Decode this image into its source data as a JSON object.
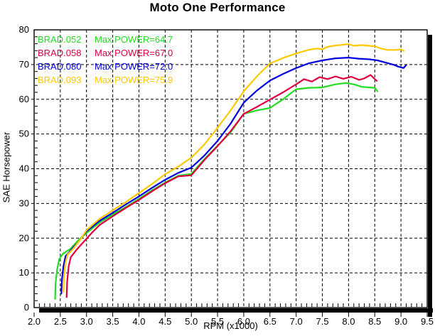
{
  "title": "Moto One Performance",
  "legend": [
    {
      "name": "BRAD.052",
      "label": "Max POWER=64.7",
      "color": "#22dd22"
    },
    {
      "name": "BRAD.058",
      "label": "Max POWER=67.0",
      "color": "#e00040"
    },
    {
      "name": "BRAD.080",
      "label": "Max POWER=72.0",
      "color": "#0000e0"
    },
    {
      "name": "BRAD.093",
      "label": "Max POWER=75.9",
      "color": "#ffc800"
    }
  ],
  "chart_data": {
    "type": "line",
    "title": "Moto One Performance",
    "xlabel": "RPM (x1000)",
    "ylabel": "SAE Horsepower",
    "xlim": [
      2.0,
      9.5
    ],
    "ylim": [
      0,
      80
    ],
    "x_ticks": [
      2.0,
      2.5,
      3.0,
      3.5,
      4.0,
      4.5,
      5.0,
      5.5,
      6.0,
      6.5,
      7.0,
      7.5,
      8.0,
      8.5,
      9.0,
      9.5
    ],
    "x_tick_labels": [
      "2.0",
      "2.5",
      "3.0",
      "3.5",
      "4.0",
      "4.5",
      "5.0",
      "5.5",
      "6.0",
      "6.5",
      "7.0",
      "7.5",
      "8.0",
      "8.5",
      "9.0",
      "9.5"
    ],
    "y_ticks": [
      0,
      10,
      20,
      30,
      40,
      50,
      60,
      70,
      80
    ],
    "y_tick_labels": [
      "0",
      "10",
      "20",
      "30",
      "40",
      "50",
      "60",
      "70",
      "80"
    ],
    "x_minor_step": 0.1,
    "y_minor_step": 2,
    "grid": "dashed",
    "grid_color": "#000000",
    "legend_position": "top-left",
    "series": [
      {
        "name": "BRAD.052",
        "max_power": 64.7,
        "color": "#22dd22",
        "points": [
          [
            2.4,
            2.5
          ],
          [
            2.41,
            7
          ],
          [
            2.44,
            11
          ],
          [
            2.48,
            14
          ],
          [
            2.55,
            15.5
          ],
          [
            2.7,
            17
          ],
          [
            2.85,
            19.5
          ],
          [
            3.0,
            21.5
          ],
          [
            3.25,
            24.5
          ],
          [
            3.5,
            26.8
          ],
          [
            3.75,
            29.0
          ],
          [
            4.0,
            31.3
          ],
          [
            4.25,
            33.8
          ],
          [
            4.5,
            36.0
          ],
          [
            4.75,
            38.0
          ],
          [
            5.0,
            38.5
          ],
          [
            5.25,
            42.8
          ],
          [
            5.5,
            46.6
          ],
          [
            5.75,
            50.5
          ],
          [
            6.0,
            55.8
          ],
          [
            6.25,
            56.8
          ],
          [
            6.5,
            57.5
          ],
          [
            6.75,
            60.0
          ],
          [
            7.0,
            62.9
          ],
          [
            7.25,
            63.3
          ],
          [
            7.5,
            63.4
          ],
          [
            7.75,
            64.3
          ],
          [
            7.95,
            64.7
          ],
          [
            8.1,
            64.3
          ],
          [
            8.25,
            63.6
          ],
          [
            8.4,
            63.4
          ],
          [
            8.5,
            63.3
          ],
          [
            8.55,
            62.3
          ]
        ]
      },
      {
        "name": "BRAD.058",
        "max_power": 67.0,
        "color": "#e00040",
        "points": [
          [
            2.62,
            3
          ],
          [
            2.63,
            7.5
          ],
          [
            2.66,
            12
          ],
          [
            2.7,
            14.5
          ],
          [
            2.8,
            16.5
          ],
          [
            2.95,
            19.0
          ],
          [
            3.1,
            21.5
          ],
          [
            3.25,
            23.8
          ],
          [
            3.5,
            26.3
          ],
          [
            3.75,
            28.7
          ],
          [
            4.0,
            31.0
          ],
          [
            4.25,
            33.5
          ],
          [
            4.5,
            35.8
          ],
          [
            4.75,
            37.8
          ],
          [
            5.0,
            38.1
          ],
          [
            5.25,
            42.5
          ],
          [
            5.5,
            46.5
          ],
          [
            5.75,
            50.8
          ],
          [
            6.0,
            55.8
          ],
          [
            6.25,
            57.8
          ],
          [
            6.5,
            59.9
          ],
          [
            6.75,
            62.0
          ],
          [
            7.0,
            64.3
          ],
          [
            7.15,
            65.8
          ],
          [
            7.3,
            65.1
          ],
          [
            7.45,
            66.4
          ],
          [
            7.6,
            65.8
          ],
          [
            7.75,
            66.6
          ],
          [
            7.9,
            65.9
          ],
          [
            8.05,
            66.5
          ],
          [
            8.2,
            65.6
          ],
          [
            8.3,
            66.0
          ],
          [
            8.42,
            67.0
          ],
          [
            8.5,
            65.8
          ],
          [
            8.54,
            65.3
          ]
        ]
      },
      {
        "name": "BRAD.080",
        "max_power": 72.0,
        "color": "#0000e0",
        "points": [
          [
            2.52,
            4
          ],
          [
            2.53,
            8
          ],
          [
            2.56,
            12
          ],
          [
            2.6,
            14.8
          ],
          [
            2.7,
            16.5
          ],
          [
            2.85,
            19.0
          ],
          [
            3.0,
            22.0
          ],
          [
            3.25,
            25.0
          ],
          [
            3.5,
            27.3
          ],
          [
            3.75,
            29.7
          ],
          [
            4.0,
            32.0
          ],
          [
            4.25,
            34.5
          ],
          [
            4.5,
            36.8
          ],
          [
            4.75,
            38.8
          ],
          [
            5.0,
            40.3
          ],
          [
            5.25,
            43.8
          ],
          [
            5.5,
            48.0
          ],
          [
            5.75,
            53.0
          ],
          [
            6.0,
            59.0
          ],
          [
            6.25,
            62.5
          ],
          [
            6.5,
            65.4
          ],
          [
            6.75,
            67.3
          ],
          [
            7.0,
            69.0
          ],
          [
            7.25,
            70.4
          ],
          [
            7.5,
            71.2
          ],
          [
            7.75,
            71.8
          ],
          [
            8.0,
            72.0
          ],
          [
            8.2,
            71.7
          ],
          [
            8.4,
            71.5
          ],
          [
            8.55,
            71.2
          ],
          [
            8.7,
            70.6
          ],
          [
            8.85,
            70.0
          ],
          [
            8.95,
            69.4
          ],
          [
            9.05,
            69.0
          ],
          [
            9.1,
            69.9
          ]
        ]
      },
      {
        "name": "BRAD.093",
        "max_power": 75.9,
        "color": "#ffc800",
        "points": [
          [
            2.56,
            4.5
          ],
          [
            2.57,
            9
          ],
          [
            2.6,
            13
          ],
          [
            2.64,
            15.3
          ],
          [
            2.75,
            17.0
          ],
          [
            2.9,
            20.0
          ],
          [
            3.0,
            22.3
          ],
          [
            3.25,
            25.6
          ],
          [
            3.5,
            28.0
          ],
          [
            3.75,
            30.4
          ],
          [
            4.0,
            33.0
          ],
          [
            4.25,
            35.6
          ],
          [
            4.5,
            38.4
          ],
          [
            4.75,
            40.6
          ],
          [
            5.0,
            43.2
          ],
          [
            5.25,
            47.0
          ],
          [
            5.5,
            51.8
          ],
          [
            5.75,
            56.8
          ],
          [
            6.0,
            62.3
          ],
          [
            6.25,
            66.6
          ],
          [
            6.5,
            70.3
          ],
          [
            6.75,
            71.9
          ],
          [
            7.0,
            73.2
          ],
          [
            7.25,
            74.3
          ],
          [
            7.4,
            74.6
          ],
          [
            7.5,
            74.4
          ],
          [
            7.6,
            75.1
          ],
          [
            7.75,
            75.5
          ],
          [
            7.9,
            75.7
          ],
          [
            8.0,
            75.9
          ],
          [
            8.1,
            75.4
          ],
          [
            8.25,
            75.6
          ],
          [
            8.4,
            75.4
          ],
          [
            8.5,
            75.3
          ],
          [
            8.6,
            74.7
          ],
          [
            8.75,
            74.2
          ],
          [
            8.9,
            74.2
          ],
          [
            9.0,
            74.4
          ],
          [
            9.05,
            73.9
          ]
        ]
      }
    ]
  }
}
